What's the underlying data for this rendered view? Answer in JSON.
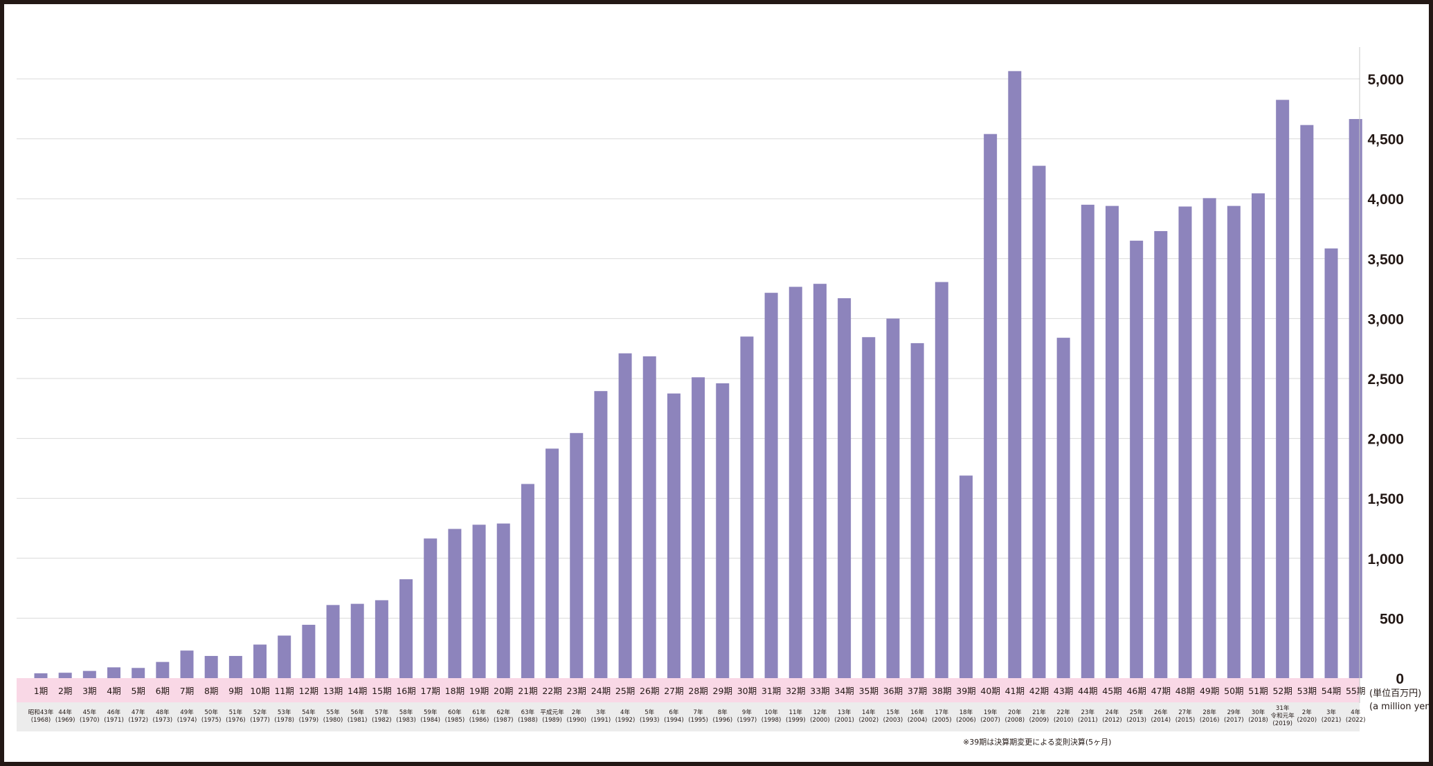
{
  "colors": {
    "bar": "#8d84bc",
    "grid": "#d9d9d9",
    "period_band": "#f9d8e6",
    "year_band": "#ececec",
    "frame": "#231815",
    "text": "#231815"
  },
  "chart_data": {
    "type": "bar",
    "categories": [
      "1期",
      "2期",
      "3期",
      "4期",
      "5期",
      "6期",
      "7期",
      "8期",
      "9期",
      "10期",
      "11期",
      "12期",
      "13期",
      "14期",
      "15期",
      "16期",
      "17期",
      "18期",
      "19期",
      "20期",
      "21期",
      "22期",
      "23期",
      "24期",
      "25期",
      "26期",
      "27期",
      "28期",
      "29期",
      "30期",
      "31期",
      "32期",
      "33期",
      "34期",
      "35期",
      "36期",
      "37期",
      "38期",
      "39期",
      "40期",
      "41期",
      "42期",
      "43期",
      "44期",
      "45期",
      "46期",
      "47期",
      "48期",
      "49期",
      "50期",
      "51期",
      "52期",
      "53期",
      "54期",
      "55期"
    ],
    "years": [
      [
        "昭和43年",
        "(1968)"
      ],
      [
        "44年",
        "(1969)"
      ],
      [
        "45年",
        "(1970)"
      ],
      [
        "46年",
        "(1971)"
      ],
      [
        "47年",
        "(1972)"
      ],
      [
        "48年",
        "(1973)"
      ],
      [
        "49年",
        "(1974)"
      ],
      [
        "50年",
        "(1975)"
      ],
      [
        "51年",
        "(1976)"
      ],
      [
        "52年",
        "(1977)"
      ],
      [
        "53年",
        "(1978)"
      ],
      [
        "54年",
        "(1979)"
      ],
      [
        "55年",
        "(1980)"
      ],
      [
        "56年",
        "(1981)"
      ],
      [
        "57年",
        "(1982)"
      ],
      [
        "58年",
        "(1983)"
      ],
      [
        "59年",
        "(1984)"
      ],
      [
        "60年",
        "(1985)"
      ],
      [
        "61年",
        "(1986)"
      ],
      [
        "62年",
        "(1987)"
      ],
      [
        "63年",
        "(1988)"
      ],
      [
        "平成元年",
        "(1989)"
      ],
      [
        "2年",
        "(1990)"
      ],
      [
        "3年",
        "(1991)"
      ],
      [
        "4年",
        "(1992)"
      ],
      [
        "5年",
        "(1993)"
      ],
      [
        "6年",
        "(1994)"
      ],
      [
        "7年",
        "(1995)"
      ],
      [
        "8年",
        "(1996)"
      ],
      [
        "9年",
        "(1997)"
      ],
      [
        "10年",
        "(1998)"
      ],
      [
        "11年",
        "(1999)"
      ],
      [
        "12年",
        "(2000)"
      ],
      [
        "13年",
        "(2001)"
      ],
      [
        "14年",
        "(2002)"
      ],
      [
        "15年",
        "(2003)"
      ],
      [
        "16年",
        "(2004)"
      ],
      [
        "17年",
        "(2005)"
      ],
      [
        "18年",
        "(2006)"
      ],
      [
        "19年",
        "(2007)"
      ],
      [
        "20年",
        "(2008)"
      ],
      [
        "21年",
        "(2009)"
      ],
      [
        "22年",
        "(2010)"
      ],
      [
        "23年",
        "(2011)"
      ],
      [
        "24年",
        "(2012)"
      ],
      [
        "25年",
        "(2013)"
      ],
      [
        "26年",
        "(2014)"
      ],
      [
        "27年",
        "(2015)"
      ],
      [
        "28年",
        "(2016)"
      ],
      [
        "29年",
        "(2017)"
      ],
      [
        "30年",
        "(2018)"
      ],
      [
        "31年",
        "令和元年",
        "(2019)"
      ],
      [
        "2年",
        "(2020)"
      ],
      [
        "3年",
        "(2021)"
      ],
      [
        "4年",
        "(2022)"
      ]
    ],
    "values": [
      40,
      45,
      60,
      90,
      85,
      135,
      230,
      185,
      185,
      280,
      355,
      445,
      610,
      620,
      650,
      825,
      1165,
      1245,
      1280,
      1290,
      1620,
      1915,
      2045,
      2395,
      2710,
      2685,
      2375,
      2510,
      2460,
      2850,
      3215,
      3265,
      3290,
      3170,
      2845,
      3000,
      2795,
      3305,
      1690,
      4540,
      5065,
      4275,
      2840,
      3950,
      3940,
      3650,
      3730,
      3935,
      4005,
      3940,
      4045,
      4825,
      4615,
      3585,
      4665
    ],
    "yticks": [
      "0",
      "500",
      "1,000",
      "1,500",
      "2,000",
      "2,500",
      "3,000",
      "3,500",
      "4,000",
      "4,500",
      "5,000"
    ],
    "ylim": [
      0,
      5000
    ],
    "grid": true,
    "y_axis_side": "right",
    "unit_label": [
      "(単位百万円)",
      "(a million yen)"
    ],
    "note": "※39期は決算期変更による変則決算(5ヶ月)"
  }
}
